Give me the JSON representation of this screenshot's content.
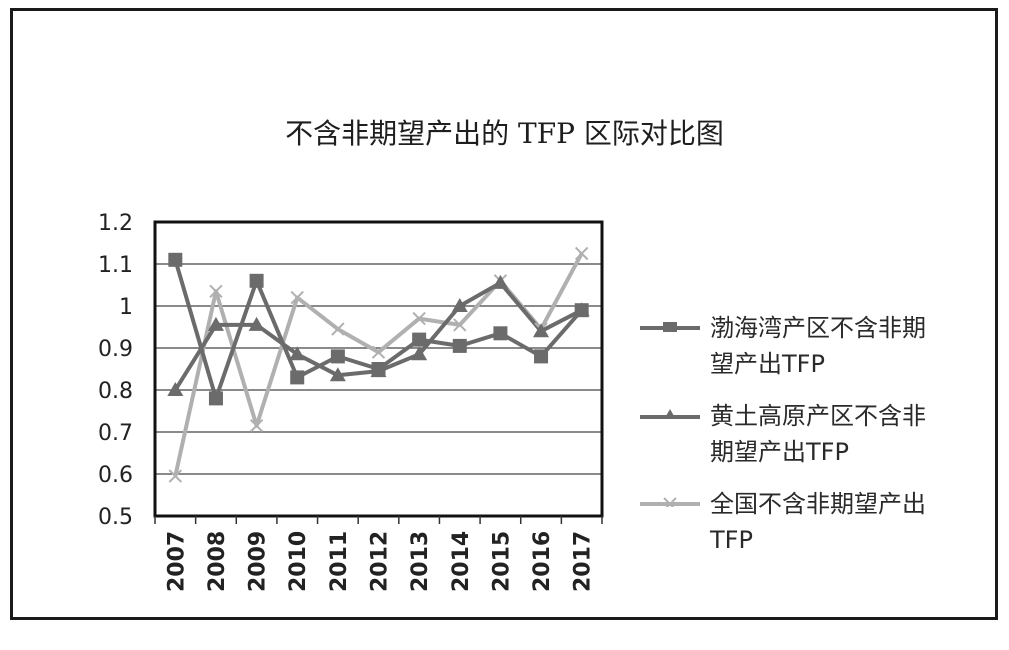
{
  "chart_data": {
    "type": "line",
    "title": "不含非期望产出的 TFP 区际对比图",
    "categories": [
      "2007",
      "2008",
      "2009",
      "2010",
      "2011",
      "2012",
      "2013",
      "2014",
      "2015",
      "2016",
      "2017"
    ],
    "ylim": [
      0.5,
      1.2
    ],
    "yticks": [
      "0.5",
      "0.6",
      "0.7",
      "0.8",
      "0.9",
      "1",
      "1.1",
      "1.2"
    ],
    "grid": true,
    "legend_position": "right",
    "series": [
      {
        "name": "渤海湾产区不含非期望产出TFP",
        "marker": "square",
        "color": "#6b6b6b",
        "values": [
          1.11,
          0.78,
          1.06,
          0.83,
          0.88,
          0.85,
          0.92,
          0.905,
          0.935,
          0.88,
          0.99
        ]
      },
      {
        "name": "黄土高原产区不含非期望产出TFP",
        "marker": "triangle",
        "color": "#6b6b6b",
        "values": [
          0.8,
          0.955,
          0.955,
          0.885,
          0.835,
          0.845,
          0.885,
          1.0,
          1.055,
          0.94,
          0.99
        ]
      },
      {
        "name": "全国不含非期望产出TFP",
        "marker": "x",
        "color": "#b0b0b0",
        "values": [
          0.595,
          1.035,
          0.715,
          1.02,
          0.945,
          0.89,
          0.97,
          0.955,
          1.06,
          0.945,
          1.125
        ]
      }
    ]
  }
}
